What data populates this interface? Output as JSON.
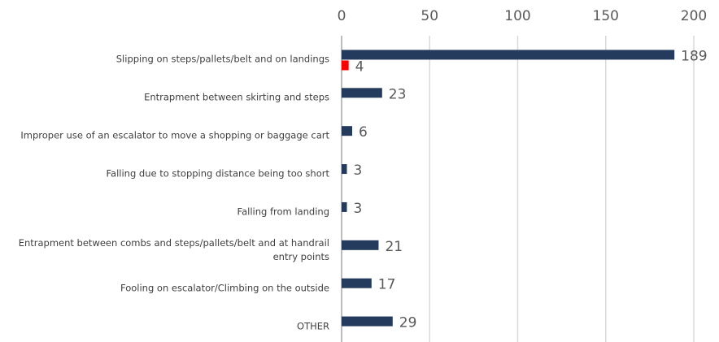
{
  "chart_data": {
    "type": "bar",
    "orientation": "horizontal",
    "categories": [
      "Slipping on steps/pallets/belt and on landings",
      "Entrapment between skirting and steps",
      "Improper use of an escalator to move a shopping or baggage cart",
      "Falling due to stopping distance being too short",
      "Falling from landing",
      "Entrapment between combs and steps/pallets/belt and  at handrail entry points",
      "Fooling on escalator/Climbing on the outside",
      "OTHER"
    ],
    "series": [
      {
        "color": "#243b5e",
        "values": [
          189,
          23,
          6,
          3,
          3,
          21,
          17,
          29
        ]
      },
      {
        "color": "#ff0000",
        "values": [
          4,
          null,
          null,
          null,
          null,
          null,
          null,
          null
        ]
      }
    ],
    "xlim": [
      0,
      200
    ],
    "xticks": [
      0,
      50,
      100,
      150,
      200
    ],
    "grid": true
  }
}
